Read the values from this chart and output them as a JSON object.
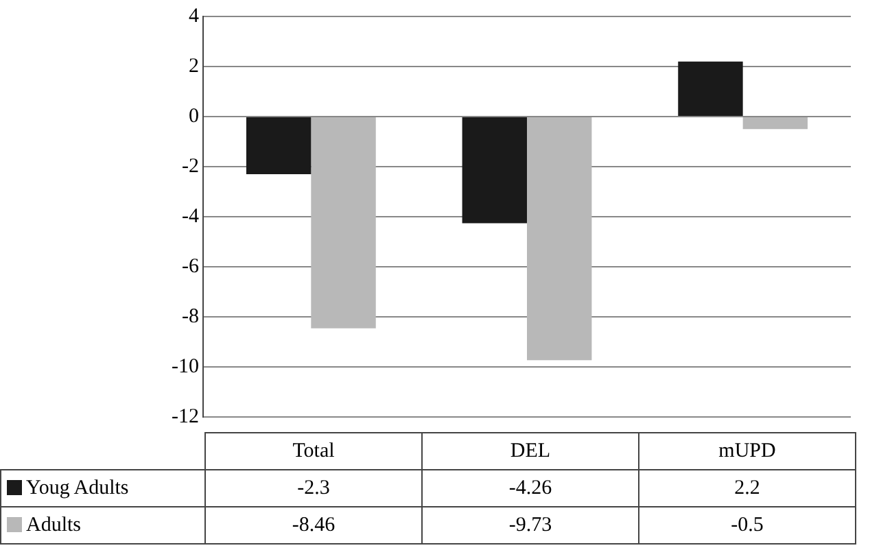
{
  "chart_data": {
    "type": "bar",
    "categories": [
      "Total",
      "DEL",
      "mUPD"
    ],
    "series": [
      {
        "name": "Youg Adults",
        "color": "#1a1a1a",
        "values": [
          -2.3,
          -4.26,
          2.2
        ]
      },
      {
        "name": "Adults",
        "color": "#b8b8b8",
        "values": [
          -8.46,
          -9.73,
          -0.5
        ]
      }
    ],
    "ylim": [
      -12,
      4
    ],
    "yticks": [
      -12,
      -10,
      -8,
      -6,
      -4,
      -2,
      0,
      2,
      4
    ],
    "grid": "y",
    "legend": "bottom",
    "data_labels": true
  }
}
